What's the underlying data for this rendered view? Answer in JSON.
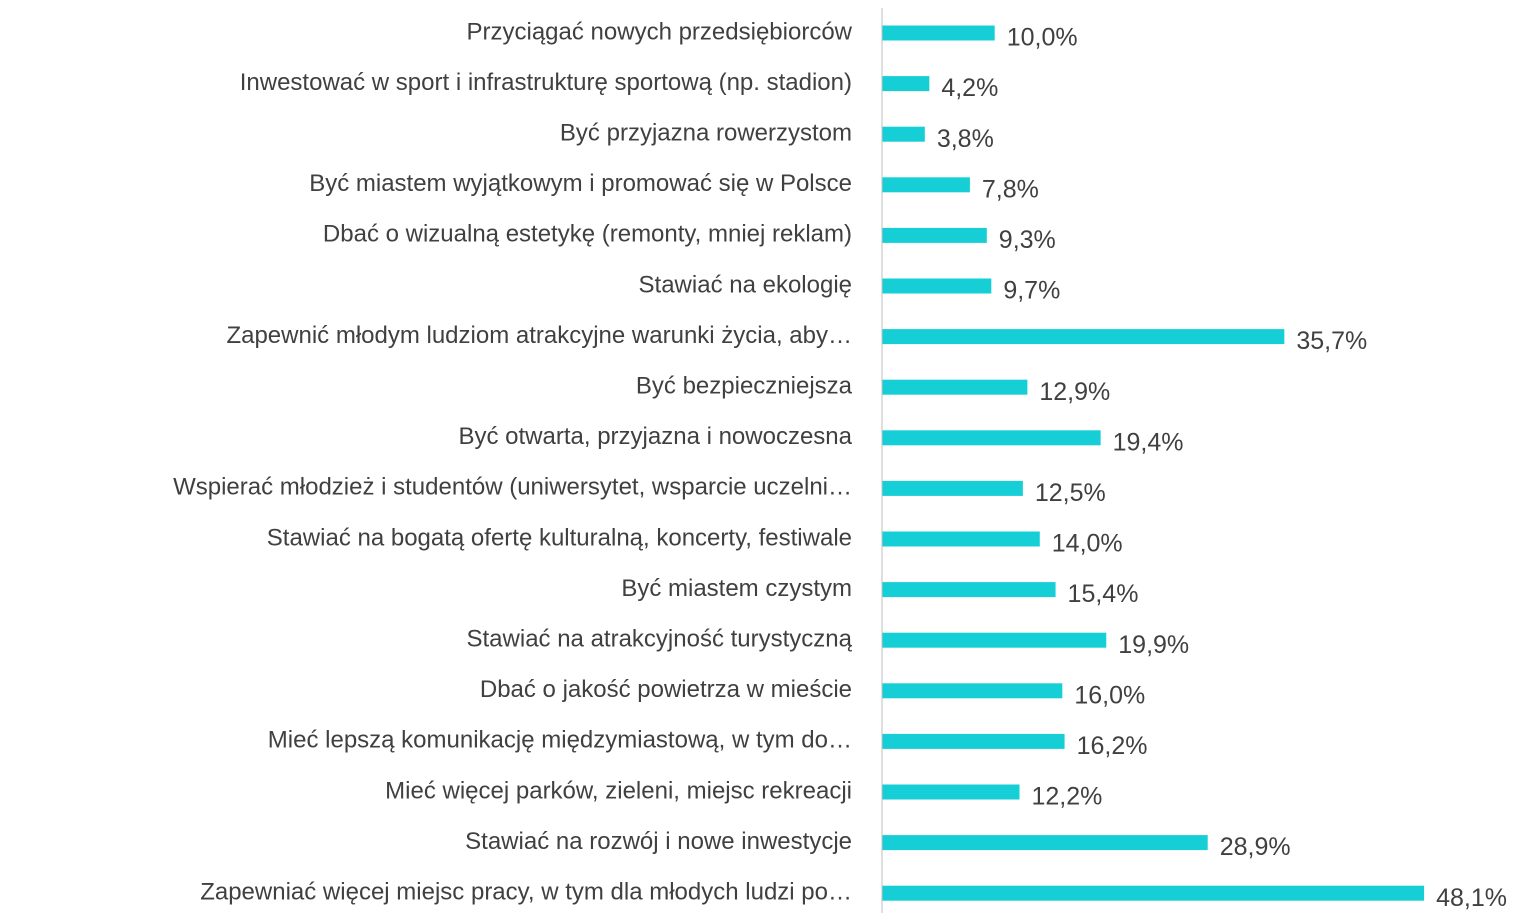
{
  "chart_data": {
    "type": "bar",
    "orientation": "horizontal",
    "color": "#16cfd6",
    "categories": [
      "Przyciągać nowych przedsiębiorców",
      "Inwestować w sport i infrastrukturę sportową (np. stadion)",
      "Być przyjazna rowerzystom",
      "Być miastem wyjątkowym i promować się w Polsce",
      "Dbać o wizualną estetykę (remonty, mniej reklam)",
      "Stawiać na ekologię",
      "Zapewnić młodym ludziom atrakcyjne warunki życia, aby…",
      "Być bezpieczniejsza",
      "Być otwarta, przyjazna i nowoczesna",
      "Wspierać młodzież i studentów (uniwersytet, wsparcie uczelni…",
      "Stawiać na bogatą ofertę kulturalną, koncerty, festiwale",
      "Być miastem czystym",
      "Stawiać na atrakcyjność turystyczną",
      "Dbać o jakość powietrza w mieście",
      "Mieć lepszą komunikację międzymiastową, w tym do…",
      "Mieć więcej parków, zieleni, miejsc rekreacji",
      "Stawiać na rozwój i nowe inwestycje",
      "Zapewniać więcej miejsc pracy, w tym dla młodych ludzi po…"
    ],
    "values": [
      10.0,
      4.2,
      3.8,
      7.8,
      9.3,
      9.7,
      35.7,
      12.9,
      19.4,
      12.5,
      14.0,
      15.4,
      19.9,
      16.0,
      16.2,
      12.2,
      28.9,
      48.1
    ],
    "value_labels": [
      "10,0%",
      "4,2%",
      "3,8%",
      "7,8%",
      "9,3%",
      "9,7%",
      "35,7%",
      "12,9%",
      "19,4%",
      "12,5%",
      "14,0%",
      "15,4%",
      "19,9%",
      "16,0%",
      "16,2%",
      "12,2%",
      "28,9%",
      "48,1%"
    ]
  }
}
